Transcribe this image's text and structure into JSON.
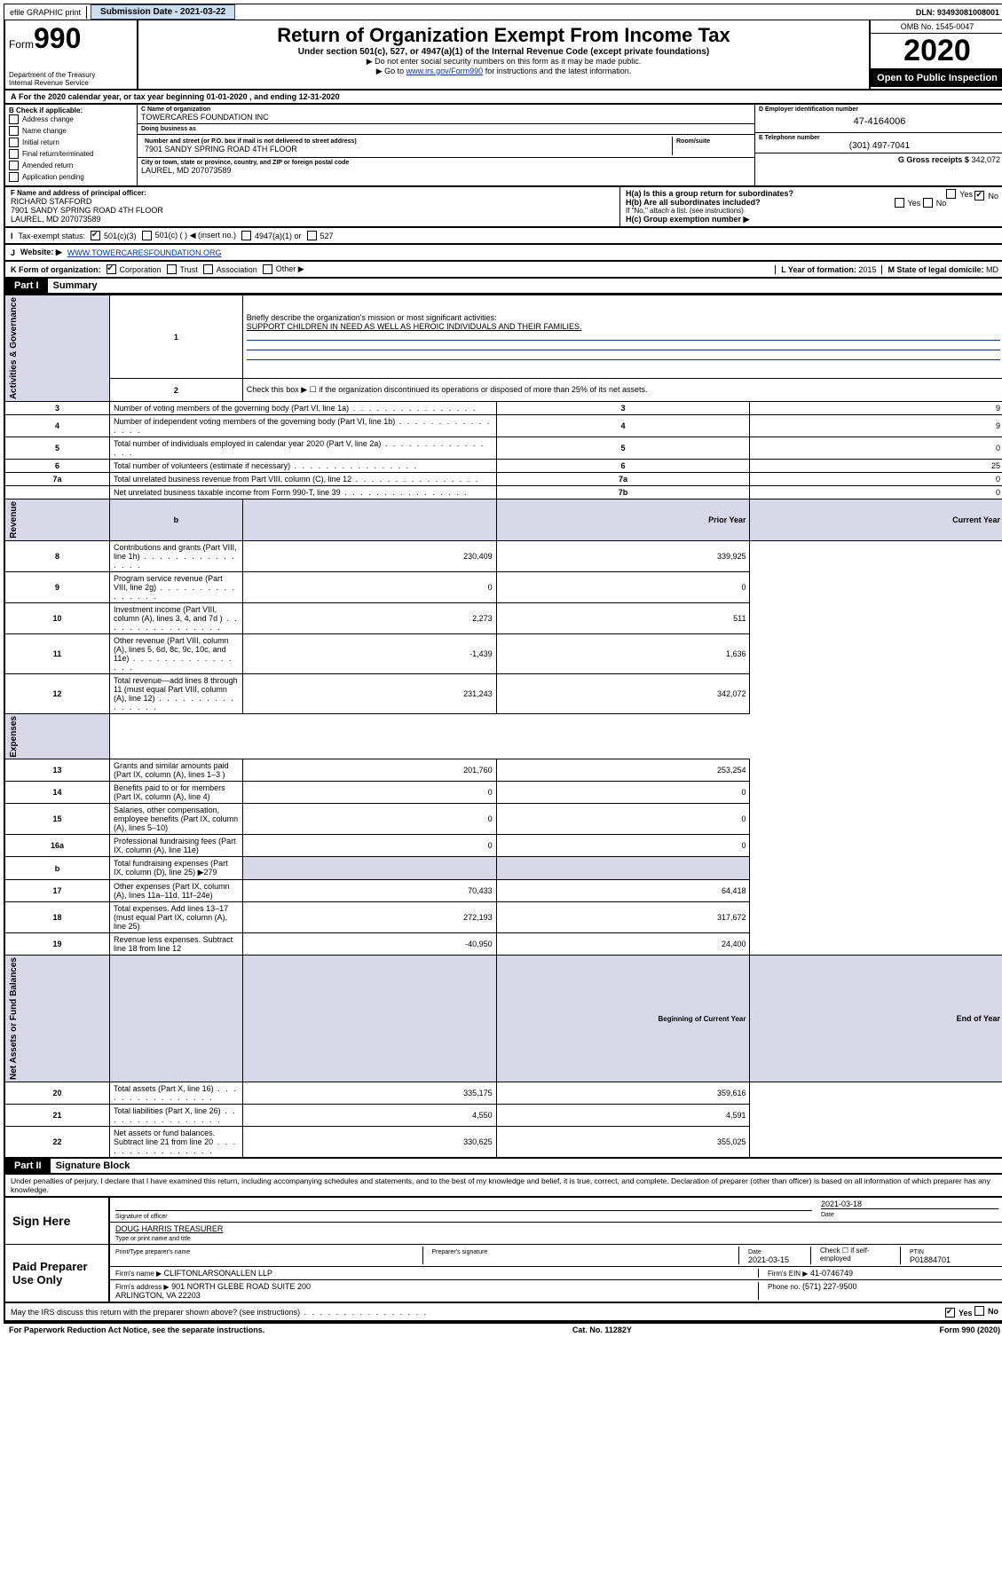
{
  "topbar": {
    "efile": "efile GRAPHIC print",
    "subdate_lbl": "Submission Date - 2021-03-22",
    "dln": "DLN: 93493081008001"
  },
  "hdr": {
    "form": "990",
    "form_prefix": "Form",
    "title": "Return of Organization Exempt From Income Tax",
    "sub": "Under section 501(c), 527, or 4947(a)(1) of the Internal Revenue Code (except private foundations)",
    "note1": "▶ Do not enter social security numbers on this form as it may be made public.",
    "note2_pre": "▶ Go to ",
    "note2_link": "www.irs.gov/Form990",
    "note2_post": " for instructions and the latest information.",
    "dept": "Department of the Treasury\nInternal Revenue Service",
    "omb": "OMB No. 1545-0047",
    "year": "2020",
    "open": "Open to Public Inspection"
  },
  "A": {
    "text": "For the 2020 calendar year, or tax year beginning 01-01-2020   , and ending 12-31-2020"
  },
  "B": {
    "hdr": "B Check if applicable:",
    "opts": [
      "Address change",
      "Name change",
      "Initial return",
      "Final return/terminated",
      "Amended return",
      "Application pending"
    ]
  },
  "C": {
    "name_lbl": "C Name of organization",
    "name": "TOWERCARES FOUNDATION INC",
    "dba_lbl": "Doing business as",
    "dba": "",
    "addr_lbl": "Number and street (or P.O. box if mail is not delivered to street address)",
    "suite_lbl": "Room/suite",
    "addr": "7901 SANDY SPRING ROAD 4TH FLOOR",
    "city_lbl": "City or town, state or province, country, and ZIP or foreign postal code",
    "city": "LAUREL, MD  207073589"
  },
  "D": {
    "lbl": "D Employer identification number",
    "val": "47-4164006"
  },
  "E": {
    "lbl": "E Telephone number",
    "val": "(301) 497-7041"
  },
  "G": {
    "lbl": "G Gross receipts $",
    "val": "342,072"
  },
  "F": {
    "lbl": "F  Name and address of principal officer:",
    "val": "RICHARD STAFFORD\n7901 SANDY SPRING ROAD 4TH FLOOR\nLAUREL, MD  207073589"
  },
  "H": {
    "a": "H(a)  Is this a group return for subordinates?",
    "a_yes": "Yes",
    "a_no": "No",
    "b": "H(b)  Are all subordinates included?",
    "b_note": "If \"No,\" attach a list. (see instructions)",
    "c": "H(c)  Group exemption number ▶"
  },
  "I": {
    "lbl": "Tax-exempt status:",
    "o1": "501(c)(3)",
    "o2": "501(c) (   ) ◀ (insert no.)",
    "o3": "4947(a)(1) or",
    "o4": "527"
  },
  "J": {
    "lbl": "Website: ▶",
    "val": "WWW.TOWERCARESFOUNDATION.ORG"
  },
  "K": {
    "lbl": "K Form of organization:",
    "o1": "Corporation",
    "o2": "Trust",
    "o3": "Association",
    "o4": "Other ▶"
  },
  "L": {
    "lbl": "L Year of formation:",
    "val": "2015"
  },
  "M": {
    "lbl": "M State of legal domicile:",
    "val": "MD"
  },
  "part1": {
    "tag": "Part I",
    "title": "Summary"
  },
  "s1": {
    "l1": "Briefly describe the organization's mission or most significant activities:",
    "l1v": "SUPPORT CHILDREN IN NEED AS WELL AS HEROIC INDIVIDUALS AND THEIR FAMILIES.",
    "l2": "Check this box ▶ ☐  if the organization discontinued its operations or disposed of more than 25% of its net assets.",
    "rows": [
      {
        "n": "3",
        "t": "Number of voting members of the governing body (Part VI, line 1a)",
        "b": "3",
        "v": "9"
      },
      {
        "n": "4",
        "t": "Number of independent voting members of the governing body (Part VI, line 1b)",
        "b": "4",
        "v": "9"
      },
      {
        "n": "5",
        "t": "Total number of individuals employed in calendar year 2020 (Part V, line 2a)",
        "b": "5",
        "v": "0"
      },
      {
        "n": "6",
        "t": "Total number of volunteers (estimate if necessary)",
        "b": "6",
        "v": "25"
      },
      {
        "n": "7a",
        "t": "Total unrelated business revenue from Part VIII, column (C), line 12",
        "b": "7a",
        "v": "0"
      },
      {
        "n": "",
        "t": "Net unrelated business taxable income from Form 990-T, line 39",
        "b": "7b",
        "v": "0"
      }
    ],
    "colhdr_prior": "Prior Year",
    "colhdr_curr": "Current Year",
    "rev": [
      {
        "n": "8",
        "t": "Contributions and grants (Part VIII, line 1h)",
        "p": "230,409",
        "c": "339,925"
      },
      {
        "n": "9",
        "t": "Program service revenue (Part VIII, line 2g)",
        "p": "0",
        "c": "0"
      },
      {
        "n": "10",
        "t": "Investment income (Part VIII, column (A), lines 3, 4, and 7d )",
        "p": "2,273",
        "c": "511"
      },
      {
        "n": "11",
        "t": "Other revenue (Part VIII, column (A), lines 5, 6d, 8c, 9c, 10c, and 11e)",
        "p": "-1,439",
        "c": "1,636"
      },
      {
        "n": "12",
        "t": "Total revenue—add lines 8 through 11 (must equal Part VIII, column (A), line 12)",
        "p": "231,243",
        "c": "342,072"
      }
    ],
    "exp": [
      {
        "n": "13",
        "t": "Grants and similar amounts paid (Part IX, column (A), lines 1–3 )",
        "p": "201,760",
        "c": "253,254"
      },
      {
        "n": "14",
        "t": "Benefits paid to or for members (Part IX, column (A), line 4)",
        "p": "0",
        "c": "0"
      },
      {
        "n": "15",
        "t": "Salaries, other compensation, employee benefits (Part IX, column (A), lines 5–10)",
        "p": "0",
        "c": "0"
      },
      {
        "n": "16a",
        "t": "Professional fundraising fees (Part IX, column (A), line 11e)",
        "p": "0",
        "c": "0"
      },
      {
        "n": "b",
        "t": "Total fundraising expenses (Part IX, column (D), line 25) ▶279",
        "p": "",
        "c": "",
        "shade": true
      },
      {
        "n": "17",
        "t": "Other expenses (Part IX, column (A), lines 11a–11d, 11f–24e)",
        "p": "70,433",
        "c": "64,418"
      },
      {
        "n": "18",
        "t": "Total expenses. Add lines 13–17 (must equal Part IX, column (A), line 25)",
        "p": "272,193",
        "c": "317,672"
      },
      {
        "n": "19",
        "t": "Revenue less expenses. Subtract line 18 from line 12",
        "p": "-40,950",
        "c": "24,400"
      }
    ],
    "colhdr_beg": "Beginning of Current Year",
    "colhdr_end": "End of Year",
    "net": [
      {
        "n": "20",
        "t": "Total assets (Part X, line 16)",
        "p": "335,175",
        "c": "359,616"
      },
      {
        "n": "21",
        "t": "Total liabilities (Part X, line 26)",
        "p": "4,550",
        "c": "4,591"
      },
      {
        "n": "22",
        "t": "Net assets or fund balances. Subtract line 21 from line 20",
        "p": "330,625",
        "c": "355,025"
      }
    ],
    "side1": "Activities & Governance",
    "side2": "Revenue",
    "side3": "Expenses",
    "side4": "Net Assets or Fund Balances"
  },
  "part2": {
    "tag": "Part II",
    "title": "Signature Block",
    "perjury": "Under penalties of perjury, I declare that I have examined this return, including accompanying schedules and statements, and to the best of my knowledge and belief, it is true, correct, and complete. Declaration of preparer (other than officer) is based on all information of which preparer has any knowledge."
  },
  "sign": {
    "here": "Sign Here",
    "sig_lbl": "Signature of officer",
    "date_lbl": "Date",
    "date": "2021-03-18",
    "name": "DOUG HARRIS  TREASURER",
    "name_lbl": "Type or print name and title"
  },
  "prep": {
    "lab": "Paid Preparer Use Only",
    "c1": "Print/Type preparer's name",
    "c2": "Preparer's signature",
    "c3": "Date",
    "c3v": "2021-03-15",
    "c4": "Check ☐ if self-employed",
    "c5": "PTIN",
    "c5v": "P01884701",
    "firm_lbl": "Firm's name    ▶",
    "firm": "CLIFTONLARSONALLEN LLP",
    "ein_lbl": "Firm's EIN ▶",
    "ein": "41-0746749",
    "addr_lbl": "Firm's address ▶",
    "addr": "901 NORTH GLEBE ROAD SUITE 200\nARLINGTON, VA  22203",
    "phone_lbl": "Phone no.",
    "phone": "(571) 227-9500"
  },
  "discuss": {
    "t": "May the IRS discuss this return with the preparer shown above? (see instructions)",
    "yes": "Yes",
    "no": "No"
  },
  "footer": {
    "l": "For Paperwork Reduction Act Notice, see the separate instructions.",
    "c": "Cat. No. 11282Y",
    "r": "Form 990 (2020)"
  }
}
